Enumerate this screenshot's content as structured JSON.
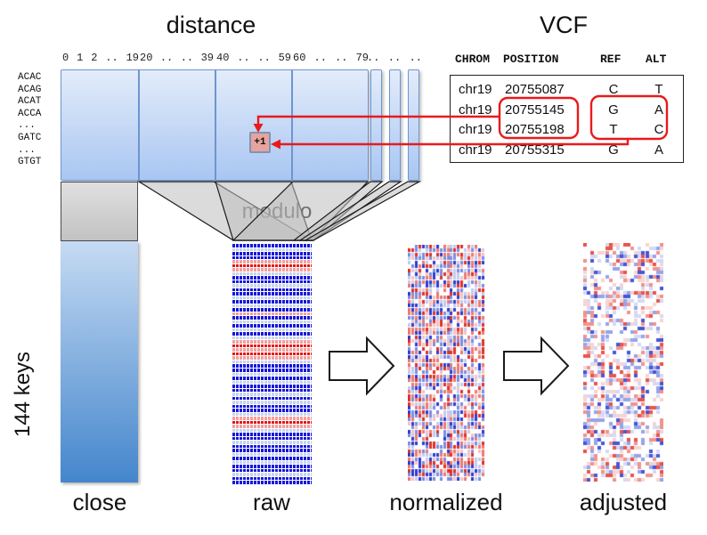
{
  "titles": {
    "distance": "distance",
    "vcf": "VCF",
    "modulo": "modulo"
  },
  "axis": {
    "tick_groups": [
      [
        "0",
        "1",
        "2",
        "..",
        "19"
      ],
      [
        "20",
        "..",
        "..",
        "39"
      ],
      [
        "40",
        "..",
        "..",
        "59"
      ],
      [
        "60",
        "..",
        "..",
        "79"
      ],
      [
        "..",
        "..",
        ".."
      ]
    ]
  },
  "row_labels": [
    "ACAC",
    "ACAG",
    "ACAT",
    "ACCA",
    "...",
    "GATC",
    "...",
    "GTGT"
  ],
  "left_axis_label": "144 keys",
  "increment_badge": "+1",
  "stage_labels": {
    "close": "close",
    "raw": "raw",
    "normalized": "normalized",
    "adjusted": "adjusted"
  },
  "vcf_table": {
    "columns": [
      "CHROM",
      "POSITION",
      "REF",
      "ALT"
    ],
    "rows": [
      {
        "chrom": "chr19",
        "position": "20755087",
        "ref": "C",
        "alt": "T"
      },
      {
        "chrom": "chr19",
        "position": "20755145",
        "ref": "G",
        "alt": "A"
      },
      {
        "chrom": "chr19",
        "position": "20755198",
        "ref": "T",
        "alt": "C"
      },
      {
        "chrom": "chr19",
        "position": "20755315",
        "ref": "G",
        "alt": "A"
      }
    ],
    "highlighted_row_indices": [
      1,
      2
    ]
  },
  "colors": {
    "panel_top": "#e3ecfa",
    "panel_bottom": "#a9c6f2",
    "panel_border": "#6e95cf",
    "close_top": "#c6daf3",
    "close_bottom": "#4486cc",
    "gray_funnel": "#c8c8c8",
    "annotation_red": "#e81a1d",
    "badge_fill": "#e7a39d",
    "badge_border": "#7d95b5"
  },
  "heatmaps": {
    "raw": {
      "palette": {
        "b": "#1717dd",
        "r": "#e81515",
        "p": "#f2a09e",
        "w": "#c6d2f0"
      },
      "pattern": [
        "b",
        "w",
        "b",
        "b",
        "p",
        "r",
        "p",
        "w",
        "b",
        "b",
        "w",
        "b",
        "b",
        "w",
        "b",
        "w",
        "b",
        "p",
        "b",
        "w",
        "b",
        "w",
        "b",
        "w",
        "p",
        "r",
        "p",
        "r",
        "p",
        "w",
        "b",
        "b",
        "w",
        "b",
        "w",
        "b",
        "b",
        "w",
        "b",
        "w",
        "b",
        "b",
        "w",
        "p",
        "r",
        "p",
        "w",
        "b",
        "b",
        "w",
        "b",
        "b",
        "w",
        "b",
        "w",
        "b",
        "b",
        "w",
        "b",
        "b"
      ]
    },
    "normalized": {
      "seed": 7,
      "cols": 22,
      "rows": 60,
      "white_weight": 0.15,
      "colors_red": [
        "#e03028",
        "#ea7a74",
        "#f4c2c0"
      ],
      "colors_blue": [
        "#2b3bd0",
        "#7d8ce0",
        "#c2cbf0"
      ],
      "tier_weights": [
        0.3,
        0.38,
        0.32
      ]
    },
    "adjusted": {
      "seed": 13,
      "cols": 22,
      "rows": 60,
      "white_weight": 0.45,
      "colors_red": [
        "#e8544c",
        "#f0948e",
        "#f8d4d2"
      ],
      "colors_blue": [
        "#4656d6",
        "#98a4e8",
        "#d4daf4"
      ],
      "tier_weights": [
        0.2,
        0.36,
        0.44
      ]
    }
  }
}
